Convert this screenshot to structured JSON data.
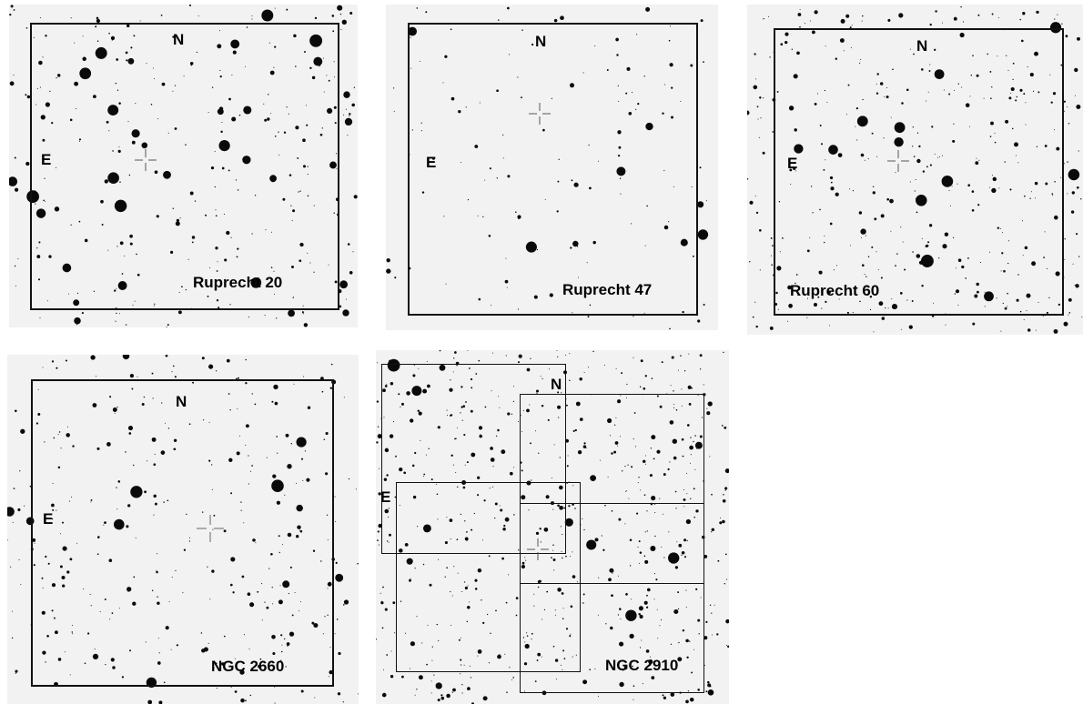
{
  "panels": [
    {
      "id": "p1",
      "name": "Ruprecht 20",
      "north": "N",
      "east": "E",
      "density": 300,
      "big": 34,
      "seed": 11
    },
    {
      "id": "p2",
      "name": "Ruprecht 47",
      "north": "N",
      "east": "E",
      "density": 130,
      "big": 8,
      "seed": 23
    },
    {
      "id": "p3",
      "name": "Ruprecht 60",
      "north": "N",
      "east": "E",
      "density": 420,
      "big": 14,
      "seed": 37
    },
    {
      "id": "p4",
      "name": "NGC 2660",
      "north": "N",
      "east": "E",
      "density": 340,
      "big": 12,
      "seed": 41
    },
    {
      "id": "p5",
      "name": "NGC 2910",
      "north": "N",
      "east": "E",
      "density": 650,
      "big": 14,
      "seed": 53
    }
  ],
  "colors": {
    "background": "#f2f2f2",
    "star": "#0a0a0a",
    "frame": "#111111"
  },
  "icons": {
    "center_marker": "crosshair-icon"
  }
}
